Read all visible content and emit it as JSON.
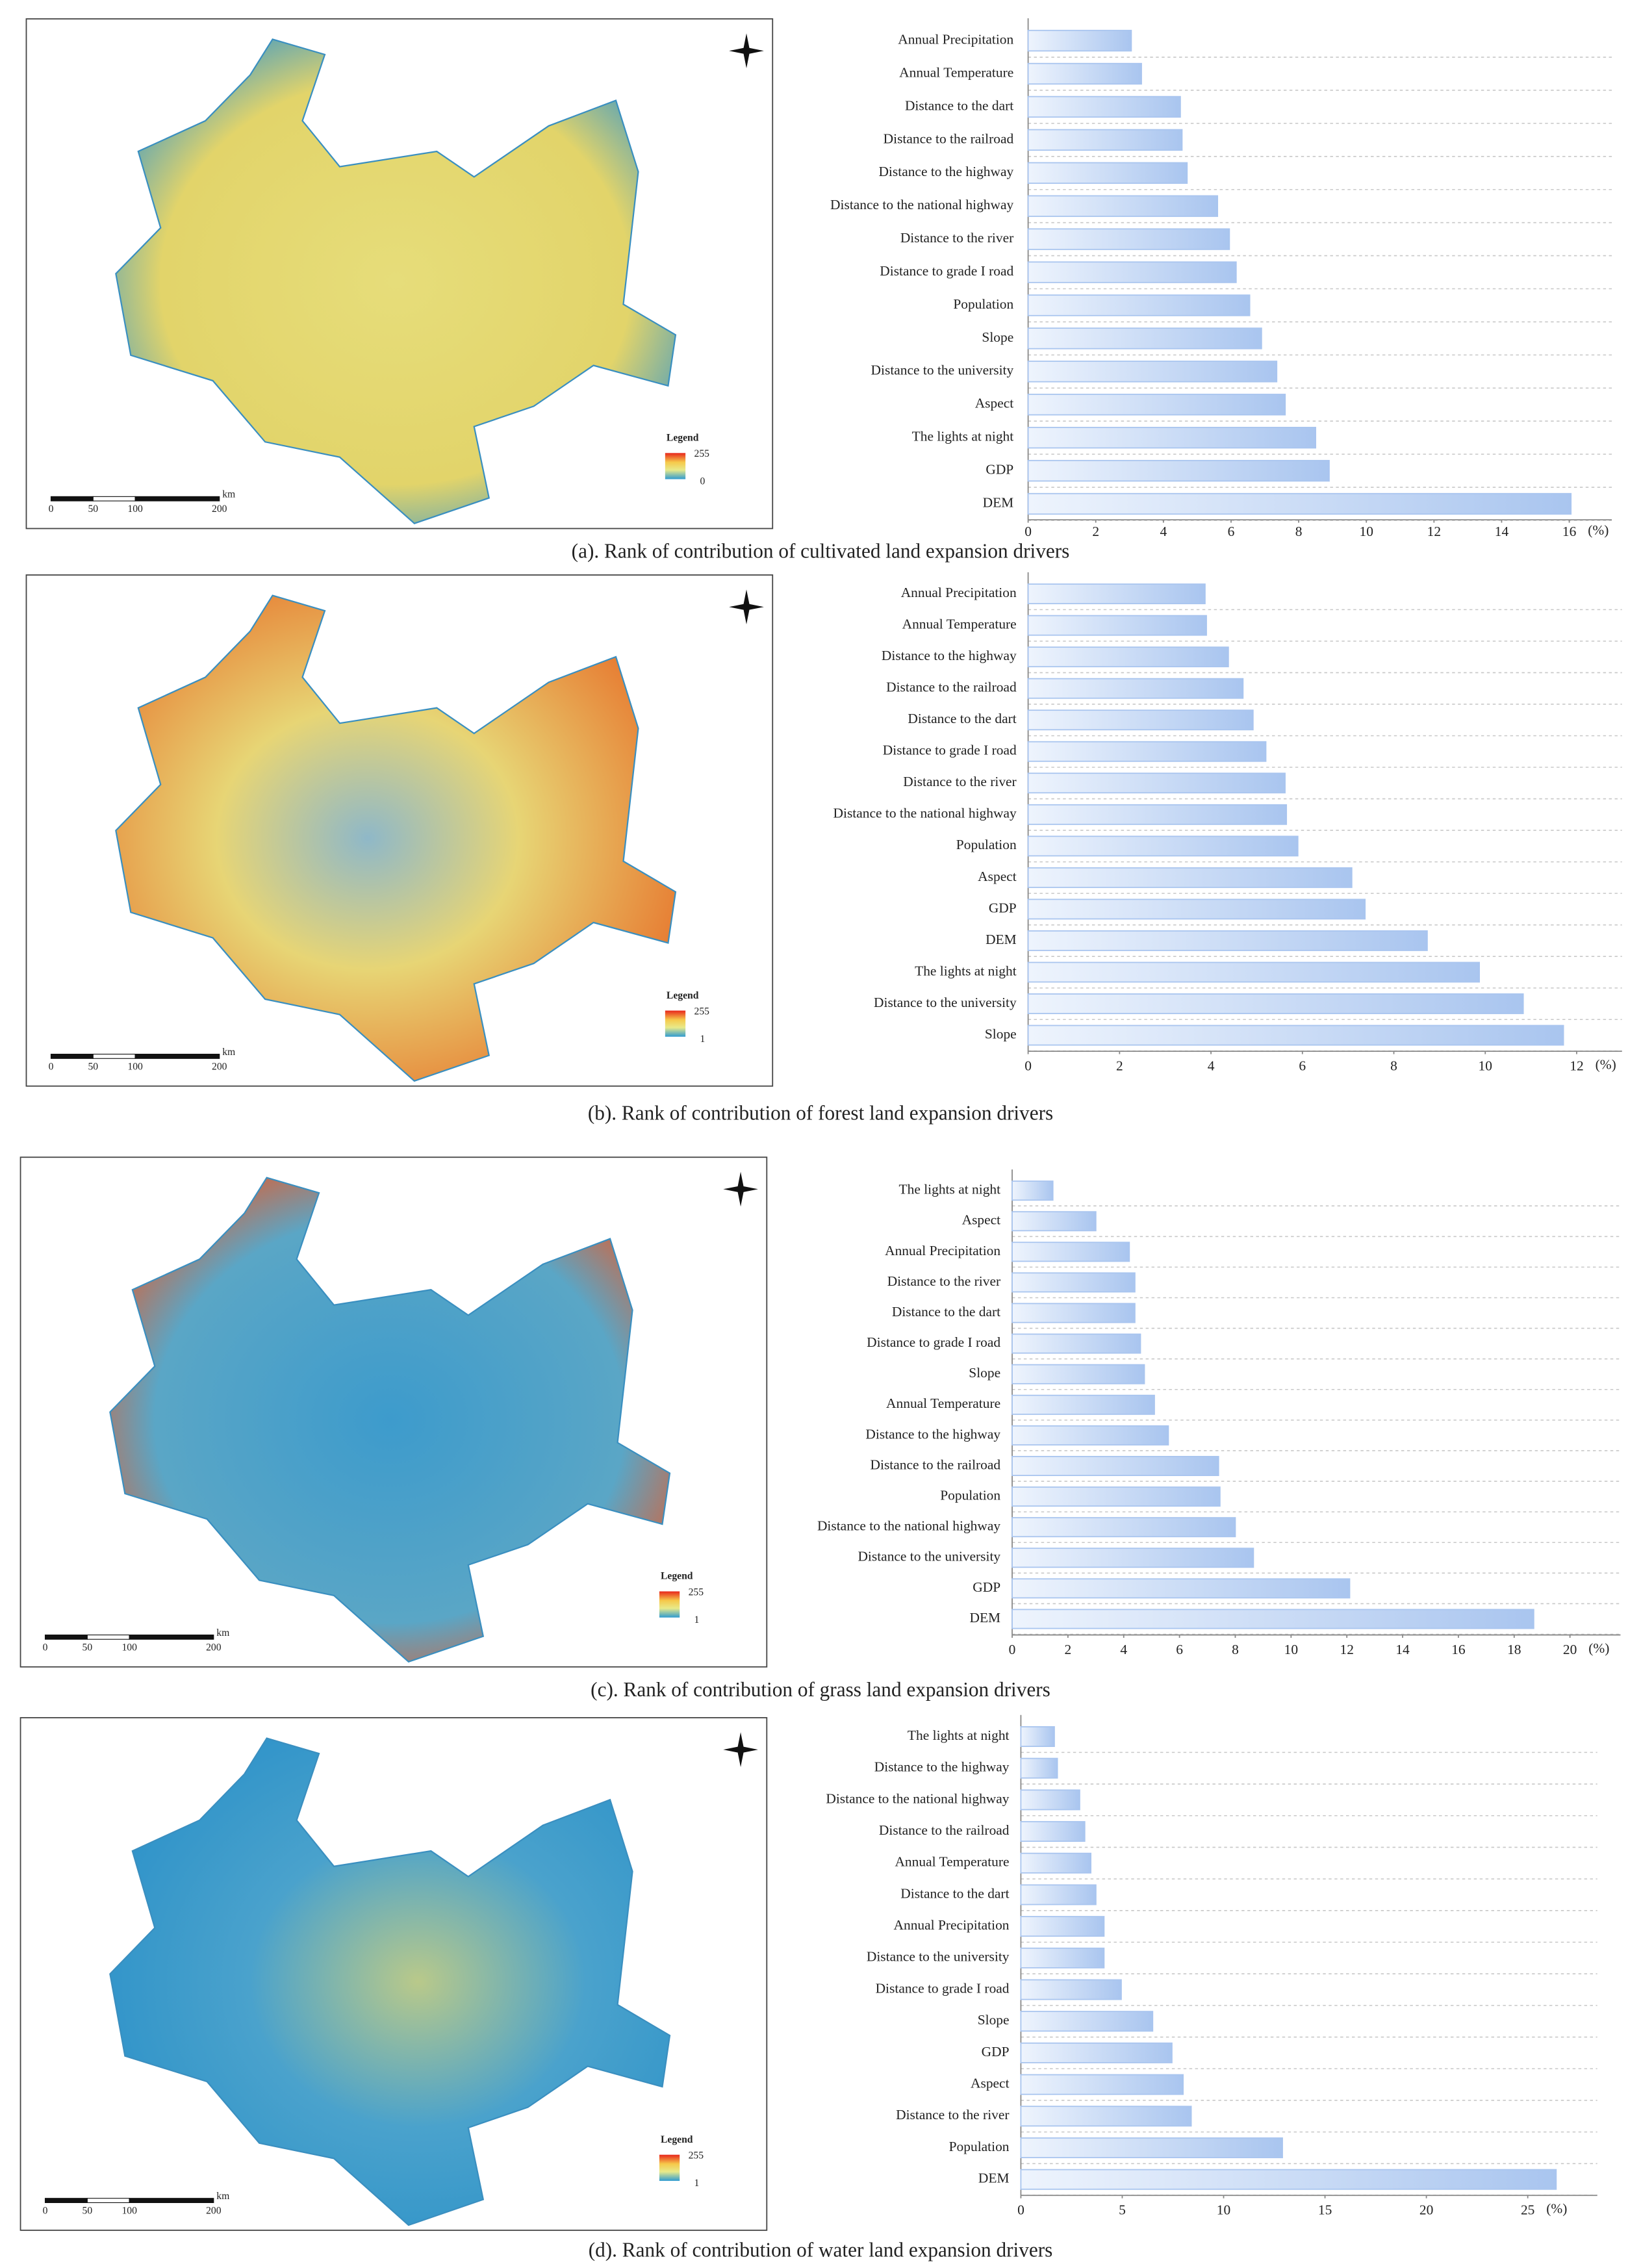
{
  "chart_data": [
    {
      "type": "bar",
      "title": "(a). Rank of contribution of cultivated land expansion drivers",
      "x_label": "(%)",
      "categories": [
        "Annual Precipitation",
        "Annual Temperature",
        "Distance to the dart",
        "Distance to the railroad",
        "Distance to the highway",
        "Distance to the national highway",
        "Distance to the river",
        "Distance to grade I road",
        "Population",
        "Slope",
        "Distance to the university",
        "Aspect",
        "The lights at night",
        "GDP",
        "DEM"
      ],
      "values": [
        3.05,
        3.35,
        4.5,
        4.55,
        4.7,
        5.6,
        5.95,
        6.15,
        6.55,
        6.9,
        7.35,
        7.6,
        8.5,
        8.9,
        16.05
      ],
      "color": "#a9c5ef",
      "xlim": [
        0,
        17
      ],
      "xticks": [
        0,
        2,
        4,
        6,
        8,
        10,
        12,
        14,
        16
      ],
      "map": {
        "legend_title": "Legend",
        "legend_max": 255,
        "legend_min": 0,
        "scale_unit": "km",
        "scale_labels": [
          0,
          50,
          100,
          200
        ]
      }
    },
    {
      "type": "bar",
      "title": "(b). Rank of contribution of forest land expansion drivers",
      "x_label": "(%)",
      "categories": [
        "Annual Precipitation",
        "Annual Temperature",
        "Distance to the highway",
        "Distance to the railroad",
        "Distance to the dart",
        "Distance to grade I road",
        "Distance to the river",
        "Distance to the national highway",
        "Population",
        "Aspect",
        "GDP",
        "DEM",
        "The lights at night",
        "Distance to the university",
        "Slope"
      ],
      "values": [
        3.87,
        3.9,
        4.38,
        4.7,
        4.92,
        5.2,
        5.62,
        5.65,
        5.9,
        7.08,
        7.37,
        8.73,
        9.87,
        10.83,
        11.71
      ],
      "color": "#a9c5ef",
      "xlim": [
        0,
        12.8
      ],
      "xticks": [
        0,
        2,
        4,
        6,
        8,
        10,
        12
      ],
      "map": {
        "legend_title": "Legend",
        "legend_max": 255,
        "legend_min": 1,
        "scale_unit": "km",
        "scale_labels": [
          0,
          50,
          100,
          200
        ]
      }
    },
    {
      "type": "bar",
      "title": "(c). Rank of contribution of grass land expansion drivers",
      "x_label": "(%)",
      "categories": [
        "The lights at night",
        "Aspect",
        "Annual Precipitation",
        "Distance to the river",
        "Distance to the dart",
        "Distance to grade I road",
        "Slope",
        "Annual Temperature",
        "Distance to the highway",
        "Distance to the railroad",
        "Population",
        "Distance to the national highway",
        "Distance to the university",
        "GDP",
        "DEM"
      ],
      "values": [
        1.46,
        3.0,
        4.2,
        4.4,
        4.4,
        4.6,
        4.74,
        5.1,
        5.6,
        7.4,
        7.45,
        8.0,
        8.65,
        12.1,
        18.7
      ],
      "color": "#a9c5ef",
      "xlim": [
        0,
        21.5
      ],
      "xticks": [
        0,
        2,
        4,
        6,
        8,
        10,
        12,
        14,
        16,
        18,
        20
      ],
      "map": {
        "legend_title": "Legend",
        "legend_max": 255,
        "legend_min": 1,
        "scale_unit": "km",
        "scale_labels": [
          0,
          50,
          100,
          200
        ]
      }
    },
    {
      "type": "bar",
      "title": "(d). Rank of contribution of water land expansion drivers",
      "x_label": "(%)",
      "categories": [
        "The lights at night",
        "Distance to the highway",
        "Distance to the national highway",
        "Distance to the railroad",
        "Annual Temperature",
        "Distance to the dart",
        "Annual Precipitation",
        "Distance to the university",
        "Distance to grade I road",
        "Slope",
        "GDP",
        "Aspect",
        "Distance to the river",
        "Population",
        "DEM"
      ],
      "values": [
        1.65,
        1.8,
        2.9,
        3.15,
        3.45,
        3.7,
        4.1,
        4.1,
        4.95,
        6.5,
        7.45,
        8.0,
        8.4,
        12.9,
        26.4
      ],
      "color": "#a9c5ef",
      "xlim": [
        0,
        28
      ],
      "xticks": [
        0,
        5,
        10,
        15,
        20,
        25
      ],
      "map": {
        "legend_title": "Legend",
        "legend_max": 255,
        "legend_min": 1,
        "scale_unit": "km",
        "scale_labels": [
          0,
          50,
          100,
          200
        ]
      }
    }
  ]
}
